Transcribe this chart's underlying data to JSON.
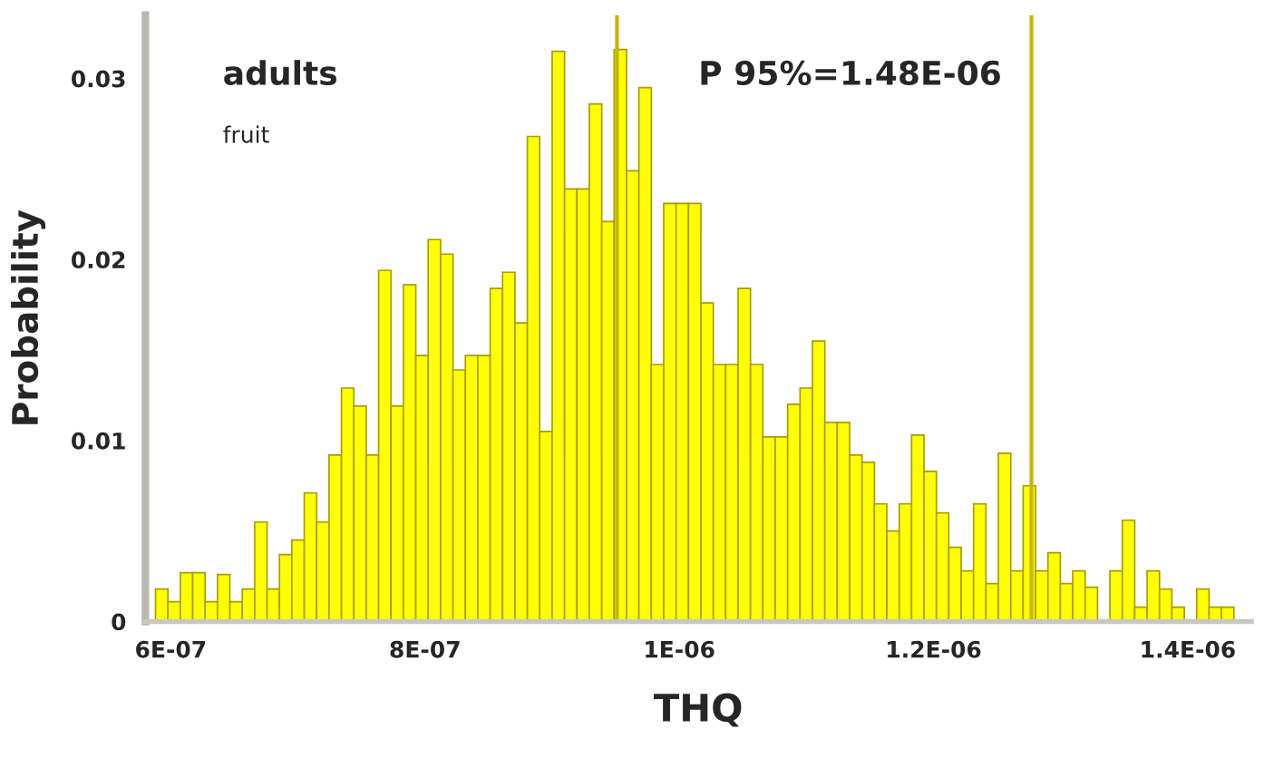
{
  "chart_data": {
    "type": "histogram",
    "xlabel": "THQ",
    "ylabel": "Probability",
    "color": "#ffff00",
    "annotations": [
      "adults",
      "fruit",
      "P 95%=1.48E-06"
    ],
    "bins": [
      5.88e-07,
      5.9775e-07,
      6.075e-07,
      6.1725e-07,
      6.27e-07,
      6.3675e-07,
      6.465e-07,
      6.5625e-07,
      6.66e-07,
      6.7575e-07,
      6.855e-07,
      6.9525e-07,
      7.05e-07,
      7.1475e-07,
      7.245e-07,
      7.3425e-07,
      7.44e-07,
      7.5375e-07,
      7.635e-07,
      7.7325e-07,
      7.83e-07,
      7.9275e-07,
      8.025e-07,
      8.1225e-07,
      8.22e-07,
      8.3175e-07,
      8.415e-07,
      8.5125e-07,
      8.61e-07,
      8.7075e-07,
      8.805e-07,
      8.9025e-07,
      9e-07,
      9.0975e-07,
      9.195e-07,
      9.2925e-07,
      9.39e-07,
      9.4875e-07,
      9.585e-07,
      9.6825e-07,
      9.78e-07,
      9.8775e-07,
      9.975e-07,
      1.00725e-06,
      1.017e-06,
      1.02675e-06,
      1.0365e-06,
      1.04625e-06,
      1.056e-06,
      1.06575e-06,
      1.0755e-06,
      1.08525e-06,
      1.095e-06,
      1.10475e-06,
      1.1145e-06,
      1.12425e-06,
      1.134e-06,
      1.14375e-06,
      1.1535e-06,
      1.16325e-06,
      1.173e-06,
      1.18275e-06,
      1.1925e-06,
      1.20225e-06,
      1.212e-06,
      1.22175e-06,
      1.2315e-06,
      1.24125e-06,
      1.251e-06,
      1.26075e-06,
      1.2705e-06,
      1.28025e-06,
      1.29e-06,
      1.29975e-06,
      1.3095e-06,
      1.31925e-06,
      1.329e-06,
      1.33875e-06,
      1.3485e-06,
      1.35825e-06,
      1.368e-06,
      1.37775e-06,
      1.3875e-06,
      1.39725e-06,
      1.407e-06,
      1.41675e-06,
      1.4265e-06,
      1.43625e-06
    ],
    "values": [
      0.0018,
      0.0011,
      0.0027,
      0.0027,
      0.0011,
      0.0026,
      0.0011,
      0.0018,
      0.0055,
      0.0018,
      0.0037,
      0.0045,
      0.0071,
      0.0055,
      0.0092,
      0.0129,
      0.0119,
      0.0092,
      0.0194,
      0.0119,
      0.0186,
      0.0147,
      0.0211,
      0.0203,
      0.0139,
      0.0147,
      0.0147,
      0.0184,
      0.0193,
      0.0165,
      0.0268,
      0.0105,
      0.0315,
      0.0239,
      0.0239,
      0.0286,
      0.0221,
      0.0316,
      0.0249,
      0.0295,
      0.0142,
      0.0231,
      0.0231,
      0.0231,
      0.0176,
      0.0142,
      0.0142,
      0.0184,
      0.0142,
      0.0102,
      0.0102,
      0.012,
      0.0129,
      0.0155,
      0.011,
      0.011,
      0.0092,
      0.0088,
      0.0065,
      0.005,
      0.0065,
      0.0103,
      0.0083,
      0.006,
      0.0041,
      0.0028,
      0.0065,
      0.0021,
      0.0093,
      0.0028,
      0.0075,
      0.0028,
      0.0038,
      0.0021,
      0.0028,
      0.0019,
      0,
      0.0028,
      0.0056,
      0.0008,
      0.0028,
      0.0018,
      0.0008,
      0,
      0.0018,
      0.0008,
      0.0008
    ],
    "xlim": [
      5.8e-07,
      1.45e-06
    ],
    "xticks": [
      {
        "value": 6e-07,
        "label": "6E-07"
      },
      {
        "value": 8e-07,
        "label": "8E-07"
      },
      {
        "value": 1e-06,
        "label": "1E-06"
      },
      {
        "value": 1.2e-06,
        "label": "1.2E-06"
      },
      {
        "value": 1.4e-06,
        "label": "1.4E-06"
      }
    ],
    "ylim": [
      0,
      0.0335
    ],
    "yticks": [
      0,
      0.01,
      0.02,
      0.03
    ],
    "ref_lines": [
      {
        "axis": "x",
        "value": 9.51e-07,
        "color": "#c8b400"
      },
      {
        "axis": "x",
        "value": 1.277e-06,
        "color": "#c8b400"
      }
    ],
    "grid": false,
    "legend": false
  }
}
